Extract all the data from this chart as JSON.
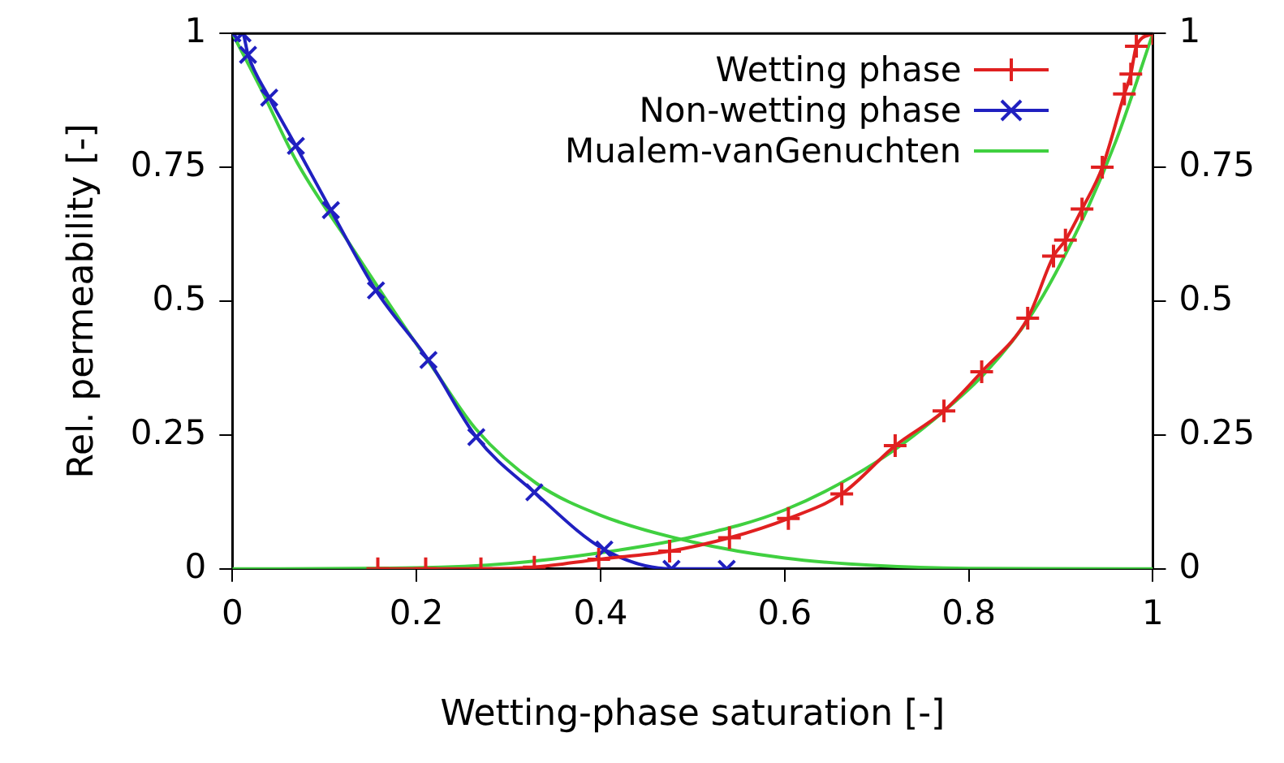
{
  "chart_data": {
    "type": "line",
    "xlabel": "Wetting-phase saturation [-]",
    "ylabel": "Rel. permeability [-]",
    "xlim": [
      0,
      1
    ],
    "xticks": [
      0,
      0.2,
      0.4,
      0.6,
      0.8,
      1
    ],
    "ylim": [
      0,
      1
    ],
    "yticks": [
      0,
      0.25,
      0.5,
      0.75,
      1
    ],
    "y2lim": [
      0,
      1
    ],
    "y2ticks": [
      0,
      0.25,
      0.5,
      0.75,
      1
    ],
    "legend": "top right",
    "series": [
      {
        "name": "Wetting phase",
        "color": "#e02020",
        "marker": "cross",
        "x": [
          0.158,
          0.21,
          0.27,
          0.328,
          0.398,
          0.475,
          0.54,
          0.604,
          0.662,
          0.72,
          0.773,
          0.814,
          0.864,
          0.892,
          0.905,
          0.923,
          0.945,
          0.969,
          0.976,
          0.982,
          1
        ],
        "values": [
          0,
          0,
          0,
          0.003,
          0.018,
          0.033,
          0.058,
          0.094,
          0.14,
          0.23,
          0.295,
          0.368,
          0.468,
          0.584,
          0.614,
          0.672,
          0.75,
          0.887,
          0.924,
          0.976,
          1
        ]
      },
      {
        "name": "Non-wetting phase",
        "color": "#2020c0",
        "marker": "x",
        "x": [
          0,
          0.011,
          0.017,
          0.04,
          0.069,
          0.107,
          0.156,
          0.213,
          0.265,
          0.328,
          0.404,
          0.477,
          0.537
        ],
        "values": [
          1,
          1,
          0.96,
          0.88,
          0.79,
          0.67,
          0.52,
          0.39,
          0.246,
          0.143,
          0.036,
          0,
          0
        ]
      },
      {
        "name": "Mualem-vanGenuchten",
        "color": "#40d040",
        "marker": "none",
        "x": [
          0,
          0.03,
          0.07,
          0.13,
          0.18,
          0.22,
          0.265,
          0.33,
          0.4,
          0.5,
          0.6,
          0.7,
          0.8,
          1,
          null,
          0,
          0.2,
          0.3,
          0.4,
          0.5,
          0.6,
          0.7,
          0.77,
          0.82,
          0.87,
          0.92,
          0.96,
          1
        ],
        "values": [
          1,
          0.9,
          0.76,
          0.6,
          0.47,
          0.37,
          0.26,
          0.16,
          0.1,
          0.05,
          0.02,
          0.006,
          0.001,
          0,
          null,
          0,
          0.002,
          0.01,
          0.03,
          0.06,
          0.11,
          0.2,
          0.29,
          0.37,
          0.48,
          0.64,
          0.8,
          1
        ]
      }
    ]
  }
}
